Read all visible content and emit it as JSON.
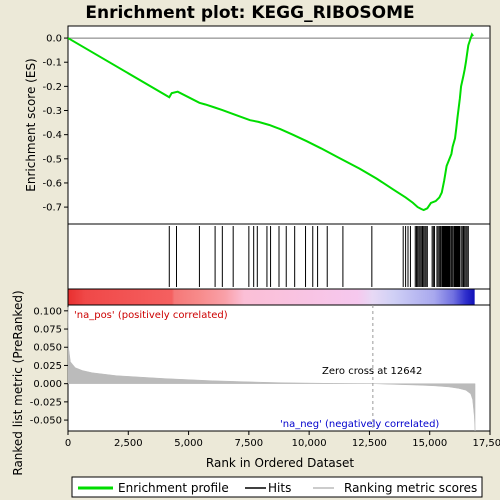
{
  "chart_data": {
    "type": "line",
    "title": "Enrichment plot: KEGG_RIBOSOME",
    "xlabel": "Rank in Ordered Dataset",
    "ylabel_top": "Enrichment score (ES)",
    "ylabel_bottom": "Ranked list metric (PreRanked)",
    "xlim": [
      0,
      17500
    ],
    "ylim_top": [
      -0.77,
      0.05
    ],
    "ylim_bottom": [
      -0.065,
      0.108
    ],
    "x_ticks": [
      0,
      2500,
      5000,
      7500,
      10000,
      12500,
      15000,
      17500
    ],
    "x_tick_labels": [
      "0",
      "2,500",
      "5,000",
      "7,500",
      "10,000",
      "12,500",
      "15,000",
      "17,500"
    ],
    "y_ticks_top": [
      0.0,
      -0.1,
      -0.2,
      -0.3,
      -0.4,
      -0.5,
      -0.6,
      -0.7
    ],
    "y_tick_labels_top": [
      "0.0",
      "-0.1",
      "-0.2",
      "-0.3",
      "-0.4",
      "-0.5",
      "-0.6",
      "-0.7"
    ],
    "y_ticks_bottom": [
      0.1,
      0.075,
      0.05,
      0.025,
      0.0,
      -0.025,
      -0.05
    ],
    "y_tick_labels_bottom": [
      "0.100",
      "0.075",
      "0.050",
      "0.025",
      "0.000",
      "-0.025",
      "-0.050"
    ],
    "series": [
      {
        "name": "Enrichment profile",
        "color": "#00dd00",
        "x": [
          0,
          4200,
          4300,
          4550,
          5450,
          5700,
          6100,
          6400,
          7050,
          7550,
          7900,
          8350,
          8800,
          9300,
          9900,
          10500,
          11200,
          12100,
          12800,
          13500,
          14000,
          14300,
          14500,
          14650,
          14750,
          14900,
          15050,
          15250,
          15400,
          15500,
          15550,
          15600,
          15650,
          15700,
          15800,
          15900,
          15950,
          16050,
          16100,
          16150,
          16200,
          16250,
          16300,
          16400,
          16450,
          16500,
          16550,
          16600,
          16750,
          16800
        ],
        "y": [
          0.0,
          -0.245,
          -0.228,
          -0.222,
          -0.268,
          -0.275,
          -0.288,
          -0.298,
          -0.322,
          -0.34,
          -0.347,
          -0.36,
          -0.377,
          -0.399,
          -0.427,
          -0.457,
          -0.494,
          -0.541,
          -0.582,
          -0.628,
          -0.66,
          -0.682,
          -0.7,
          -0.708,
          -0.712,
          -0.705,
          -0.683,
          -0.675,
          -0.66,
          -0.64,
          -0.615,
          -0.59,
          -0.56,
          -0.53,
          -0.505,
          -0.48,
          -0.45,
          -0.415,
          -0.375,
          -0.33,
          -0.29,
          -0.25,
          -0.2,
          -0.155,
          -0.13,
          -0.1,
          -0.065,
          -0.03,
          0.015,
          0.008
        ]
      },
      {
        "name": "Hits",
        "color": "#000000",
        "positions": [
          4200,
          4500,
          5450,
          6100,
          6400,
          6850,
          7500,
          7700,
          7850,
          8250,
          8400,
          8750,
          9050,
          9400,
          9850,
          10150,
          10350,
          10750,
          11400,
          12600,
          13900,
          14000,
          14100,
          14200,
          14400,
          14450,
          14500,
          14550,
          14600,
          14650,
          14700,
          14750,
          14800,
          14850,
          14900,
          15100,
          15150,
          15200,
          15300,
          15350,
          15400,
          15450,
          15500,
          15520,
          15540,
          15560,
          15580,
          15600,
          15620,
          15640,
          15660,
          15680,
          15700,
          15720,
          15740,
          15760,
          15780,
          15800,
          15820,
          15850,
          15900,
          15950,
          16000,
          16020,
          16040,
          16060,
          16080,
          16100,
          16120,
          16140,
          16160,
          16180,
          16200,
          16220,
          16240,
          16300,
          16350,
          16400,
          16450,
          16500,
          16550,
          16600
        ]
      },
      {
        "name": "Ranking metric scores",
        "color": "#bbbbbb",
        "x": [
          0,
          30,
          100,
          300,
          600,
          1000,
          2000,
          3000,
          4000,
          5000,
          6000,
          7000,
          8000,
          9000,
          10000,
          11000,
          12000,
          12642,
          13500,
          14500,
          15200,
          15800,
          16200,
          16500,
          16700,
          16780,
          16850,
          16880
        ],
        "y": [
          0.105,
          0.048,
          0.03,
          0.022,
          0.018,
          0.015,
          0.011,
          0.009,
          0.007,
          0.0055,
          0.004,
          0.003,
          0.002,
          0.0012,
          0.0008,
          0.0004,
          0.0001,
          0.0,
          -0.001,
          -0.002,
          -0.003,
          -0.0045,
          -0.0065,
          -0.009,
          -0.014,
          -0.022,
          -0.045,
          -0.065
        ]
      }
    ],
    "annotations": {
      "pos_label": "'na_pos' (positively correlated)",
      "neg_label": "'na_neg' (negatively correlated)",
      "zero_cross": "Zero cross at 12642",
      "zero_cross_x": 12642
    },
    "colors": {
      "pos_label": "#cc0000",
      "neg_label": "#0000cc",
      "grid": "#bbbbbb",
      "plot_bg": "#ffffff",
      "page_bg": "#ece9d8"
    },
    "legend": {
      "placement": "bottom",
      "entries": [
        "Enrichment profile",
        "Hits",
        "Ranking metric scores"
      ]
    }
  }
}
